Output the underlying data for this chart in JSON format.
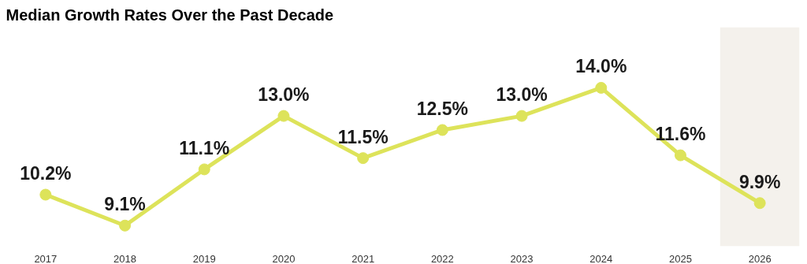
{
  "chart_data": {
    "type": "line",
    "title": "Median Growth Rates Over the Past Decade",
    "categories": [
      "2017",
      "2018",
      "2019",
      "2020",
      "2021",
      "2022",
      "2023",
      "2024",
      "2025",
      "2026"
    ],
    "series": [
      {
        "color": "#dde35a",
        "values": [
          10.2,
          9.1,
          11.1,
          13.0,
          11.5,
          12.5,
          13.0,
          14.0,
          11.6,
          9.9
        ],
        "value_labels": [
          "10.2%",
          "9.1%",
          "11.1%",
          "13.0%",
          "11.5%",
          "12.5%",
          "13.0%",
          "14.0%",
          "11.6%",
          "9.9%"
        ]
      }
    ],
    "marker": "circle",
    "grid": false,
    "bands": [
      {
        "axis": "x",
        "from": "2026",
        "to": "2026",
        "color": "#f4f1ec"
      }
    ]
  }
}
